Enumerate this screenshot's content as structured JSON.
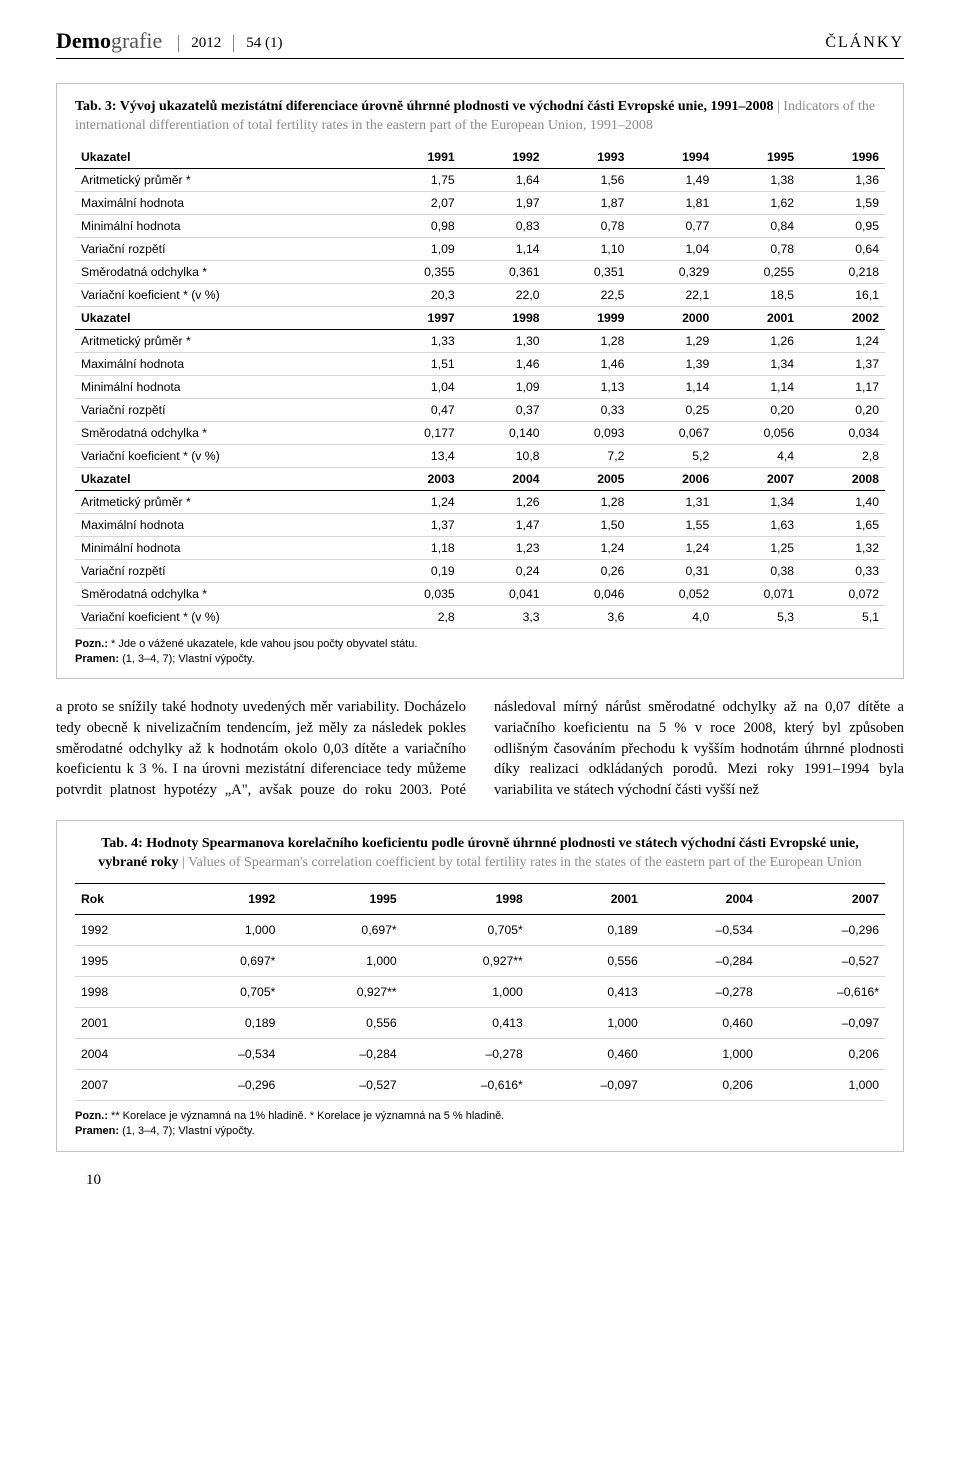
{
  "header": {
    "journal_bold": "Demo",
    "journal_light": "grafie",
    "year": "2012",
    "volume": "54 (1)",
    "section": "ČLÁNKY"
  },
  "tab3": {
    "caption_bold": "Tab. 3: Vývoj ukazatelů mezistátní diferenciace úrovně úhrnné plodnosti ve východní části Evropské unie, 1991–2008",
    "caption_light": " | Indicators of the international differentiation of total fertility rates in the eastern part of the European Union, 1991–2008",
    "groups": [
      {
        "header": [
          "Ukazatel",
          "1991",
          "1992",
          "1993",
          "1994",
          "1995",
          "1996"
        ],
        "rows": [
          [
            "Aritmetický průměr *",
            "1,75",
            "1,64",
            "1,56",
            "1,49",
            "1,38",
            "1,36"
          ],
          [
            "Maximální hodnota",
            "2,07",
            "1,97",
            "1,87",
            "1,81",
            "1,62",
            "1,59"
          ],
          [
            "Minimální hodnota",
            "0,98",
            "0,83",
            "0,78",
            "0,77",
            "0,84",
            "0,95"
          ],
          [
            "Variační rozpětí",
            "1,09",
            "1,14",
            "1,10",
            "1,04",
            "0,78",
            "0,64"
          ],
          [
            "Směrodatná odchylka *",
            "0,355",
            "0,361",
            "0,351",
            "0,329",
            "0,255",
            "0,218"
          ],
          [
            "Variační koeficient * (v %)",
            "20,3",
            "22,0",
            "22,5",
            "22,1",
            "18,5",
            "16,1"
          ]
        ]
      },
      {
        "header": [
          "Ukazatel",
          "1997",
          "1998",
          "1999",
          "2000",
          "2001",
          "2002"
        ],
        "rows": [
          [
            "Aritmetický průměr *",
            "1,33",
            "1,30",
            "1,28",
            "1,29",
            "1,26",
            "1,24"
          ],
          [
            "Maximální hodnota",
            "1,51",
            "1,46",
            "1,46",
            "1,39",
            "1,34",
            "1,37"
          ],
          [
            "Minimální hodnota",
            "1,04",
            "1,09",
            "1,13",
            "1,14",
            "1,14",
            "1,17"
          ],
          [
            "Variační rozpětí",
            "0,47",
            "0,37",
            "0,33",
            "0,25",
            "0,20",
            "0,20"
          ],
          [
            "Směrodatná odchylka *",
            "0,177",
            "0,140",
            "0,093",
            "0,067",
            "0,056",
            "0,034"
          ],
          [
            "Variační koeficient * (v %)",
            "13,4",
            "10,8",
            "7,2",
            "5,2",
            "4,4",
            "2,8"
          ]
        ]
      },
      {
        "header": [
          "Ukazatel",
          "2003",
          "2004",
          "2005",
          "2006",
          "2007",
          "2008"
        ],
        "rows": [
          [
            "Aritmetický průměr *",
            "1,24",
            "1,26",
            "1,28",
            "1,31",
            "1,34",
            "1,40"
          ],
          [
            "Maximální hodnota",
            "1,37",
            "1,47",
            "1,50",
            "1,55",
            "1,63",
            "1,65"
          ],
          [
            "Minimální hodnota",
            "1,18",
            "1,23",
            "1,24",
            "1,24",
            "1,25",
            "1,32"
          ],
          [
            "Variační rozpětí",
            "0,19",
            "0,24",
            "0,26",
            "0,31",
            "0,38",
            "0,33"
          ],
          [
            "Směrodatná odchylka *",
            "0,035",
            "0,041",
            "0,046",
            "0,052",
            "0,071",
            "0,072"
          ],
          [
            "Variační koeficient * (v %)",
            "2,8",
            "3,3",
            "3,6",
            "4,0",
            "5,3",
            "5,1"
          ]
        ]
      }
    ],
    "footnote1_label": "Pozn.:",
    "footnote1": " * Jde o vážené ukazatele, kde vahou jsou počty obyvatel státu.",
    "footnote2_label": "Pramen:",
    "footnote2": " (1, 3–4, 7); Vlastní výpočty."
  },
  "body_text": "a proto se snížily také hodnoty uvedených měr variability. Docházelo tedy obecně k nivelizačním tendencím, jež měly za následek pokles směrodatné odchylky až k hodnotám okolo 0,03 dítěte a variačního koeficientu k 3 %. I na úrovni mezistátní diferenciace tedy můžeme potvrdit platnost hypotézy „A\", avšak pouze do roku 2003. Poté následoval mírný nárůst směrodatné odchylky až na 0,07 dítěte a variačního koeficientu na 5 % v roce 2008, který byl způsoben odlišným časováním přechodu k vyšším hodnotám úhrnné plodnosti díky realizaci odkládaných porodů. Mezi roky 1991–1994 byla variabilita ve státech východní části vyšší než",
  "tab4": {
    "caption_bold": "Tab. 4: Hodnoty Spearmanova korelačního koeficientu podle úrovně úhrnné plodnosti ve státech východní části Evropské unie, vybrané roky",
    "caption_light": " | Values of Spearman's correlation coefficient by total fertility rates in the states of the eastern part of the European Union",
    "header": [
      "Rok",
      "1992",
      "1995",
      "1998",
      "2001",
      "2004",
      "2007"
    ],
    "rows": [
      [
        "1992",
        "1,000",
        "0,697*",
        "0,705*",
        "0,189",
        "–0,534",
        "–0,296"
      ],
      [
        "1995",
        "0,697*",
        "1,000",
        "0,927**",
        "0,556",
        "–0,284",
        "–0,527"
      ],
      [
        "1998",
        "0,705*",
        "0,927**",
        "1,000",
        "0,413",
        "–0,278",
        "–0,616*"
      ],
      [
        "2001",
        "0,189",
        "0,556",
        "0,413",
        "1,000",
        "0,460",
        "–0,097"
      ],
      [
        "2004",
        "–0,534",
        "–0,284",
        "–0,278",
        "0,460",
        "1,000",
        "0,206"
      ],
      [
        "2007",
        "–0,296",
        "–0,527",
        "–0,616*",
        "–0,097",
        "0,206",
        "1,000"
      ]
    ],
    "footnote1_label": "Pozn.:",
    "footnote1": " ** Korelace je významná na 1% hladině. * Korelace je významná na 5 % hladině.",
    "footnote2_label": "Pramen:",
    "footnote2": " (1, 3–4, 7); Vlastní výpočty."
  },
  "page_number": "10"
}
